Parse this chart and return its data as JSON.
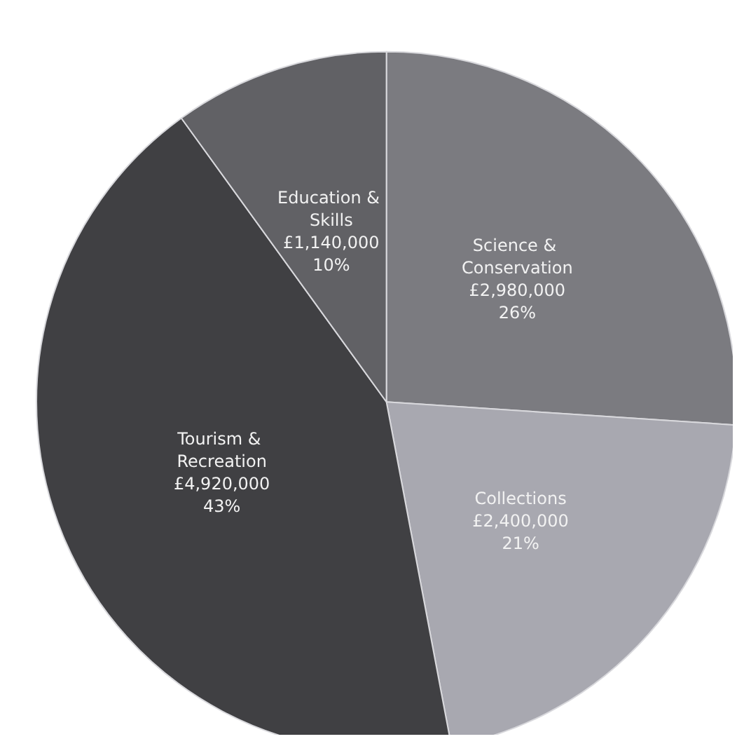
{
  "chart_data": {
    "type": "pie",
    "categories": [
      "Science & Conservation",
      "Collections",
      "Tourism & Recreation",
      "Education & Skills"
    ],
    "values": [
      2980000,
      2400000,
      4920000,
      1140000
    ],
    "value_labels": [
      "£2,980,000\n26%",
      "£2,400,000\n21%",
      "£4,920,000\n43%",
      "£1,140,000\n10%"
    ],
    "colors": [
      "#7b7b80",
      "#a8a8b0",
      "#404043",
      "#616165"
    ],
    "legend": false
  }
}
